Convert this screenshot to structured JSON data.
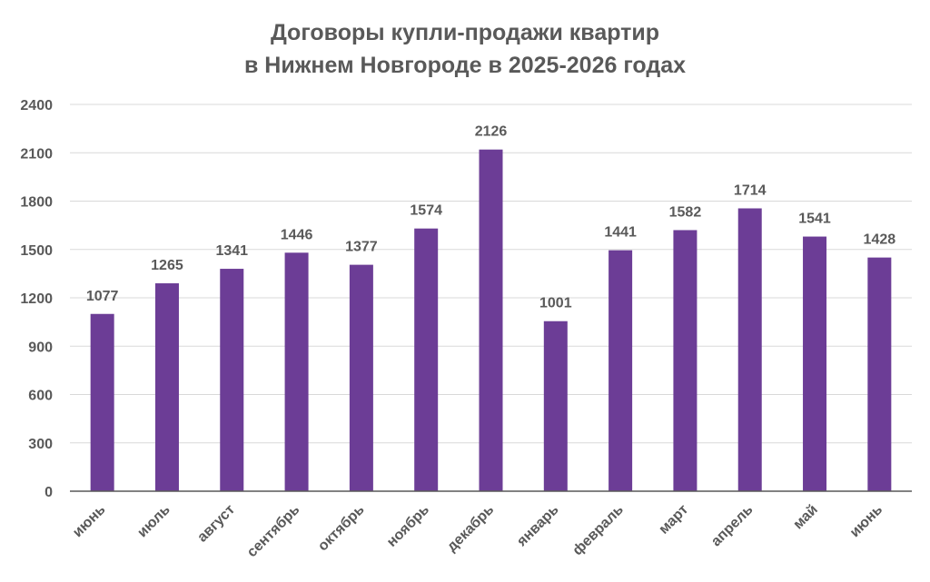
{
  "chart_data": {
    "type": "bar",
    "title_lines": [
      "Договоры купли-продажи квартир",
      "в Нижнем Новгороде в 2025-2026 годах"
    ],
    "categories": [
      "июнь",
      "июль",
      "август",
      "сентябрь",
      "октябрь",
      "ноябрь",
      "декабрь",
      "январь",
      "февраль",
      "март",
      "апрель",
      "май",
      "июнь"
    ],
    "values": [
      1077,
      1265,
      1341,
      1446,
      1377,
      1574,
      2126,
      1001,
      1441,
      1582,
      1714,
      1541,
      1428
    ],
    "bar_heights": [
      1100,
      1290,
      1380,
      1480,
      1405,
      1630,
      2120,
      1055,
      1495,
      1620,
      1755,
      1580,
      1450
    ],
    "ylim": [
      0,
      2400
    ],
    "yticks": [
      0,
      300,
      600,
      900,
      1200,
      1500,
      1800,
      2100,
      2400
    ],
    "ytick_labels": [
      "0",
      "300",
      "600",
      "900",
      "1200",
      "1500",
      "1800",
      "2100",
      "2400"
    ],
    "grid": true,
    "bar_color": "#6c3d96",
    "grid_color": "#d9d9d9",
    "axis_color": "#595959"
  }
}
